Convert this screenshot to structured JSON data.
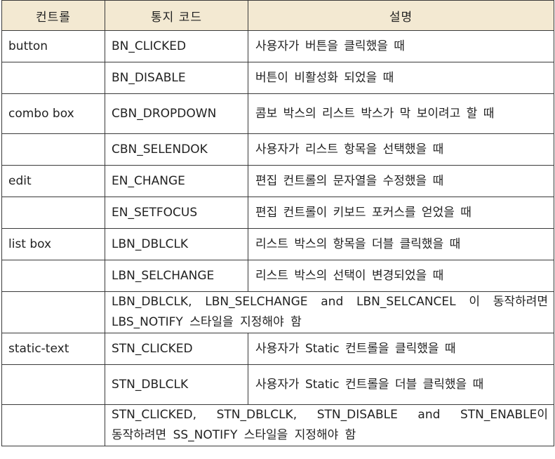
{
  "table": {
    "headers": [
      "컨트롤",
      "통지 코드",
      "설명"
    ],
    "rows": [
      {
        "control": "button",
        "code": "BN_CLICKED",
        "desc": "사용자가 버튼을 클릭했을 때"
      },
      {
        "control": "",
        "code": "BN_DISABLE",
        "desc": "버튼이 비활성화 되었을 때"
      },
      {
        "control": "combo box",
        "code": "CBN_DROPDOWN",
        "desc": "콤보 박스의 리스트 박스가 막 보이려고 할 때"
      },
      {
        "control": "",
        "code": "CBN_SELENDOK",
        "desc": "사용자가 리스트 항목을 선택했을 때"
      },
      {
        "control": "edit",
        "code": "EN_CHANGE",
        "desc": "편집 컨트롤의 문자열을 수정했을 때"
      },
      {
        "control": "",
        "code": "EN_SETFOCUS",
        "desc": "편집 컨트롤이 키보드 포커스를 얻었을 때"
      },
      {
        "control": "list box",
        "code": "LBN_DBLCLK",
        "desc": "리스트 박스의 항목을 더블 클릭했을 때"
      },
      {
        "control": "",
        "code": "LBN_SELCHANGE",
        "desc": "리스트 박스의 선택이 변경되었을 때"
      },
      {
        "control": "",
        "note": "LBN_DBLCLK, LBN_SELCHANGE and LBN_SELCANCEL 이 동작하려면 LBS_NOTIFY 스타일을 지정해야 함"
      },
      {
        "control": "static-text",
        "code": "STN_CLICKED",
        "desc": "사용자가 Static 컨트롤을 클릭했을 때"
      },
      {
        "control": "",
        "code": "STN_DBLCLK",
        "desc": "사용자가 Static 컨트롤을 더블 클릭했을 때"
      },
      {
        "control": "",
        "note": "STN_CLICKED, STN_DBLCLK, STN_DISABLE and STN_ENABLE이 동작하려면 SS_NOTIFY 스타일을 지정해야 함"
      }
    ]
  }
}
